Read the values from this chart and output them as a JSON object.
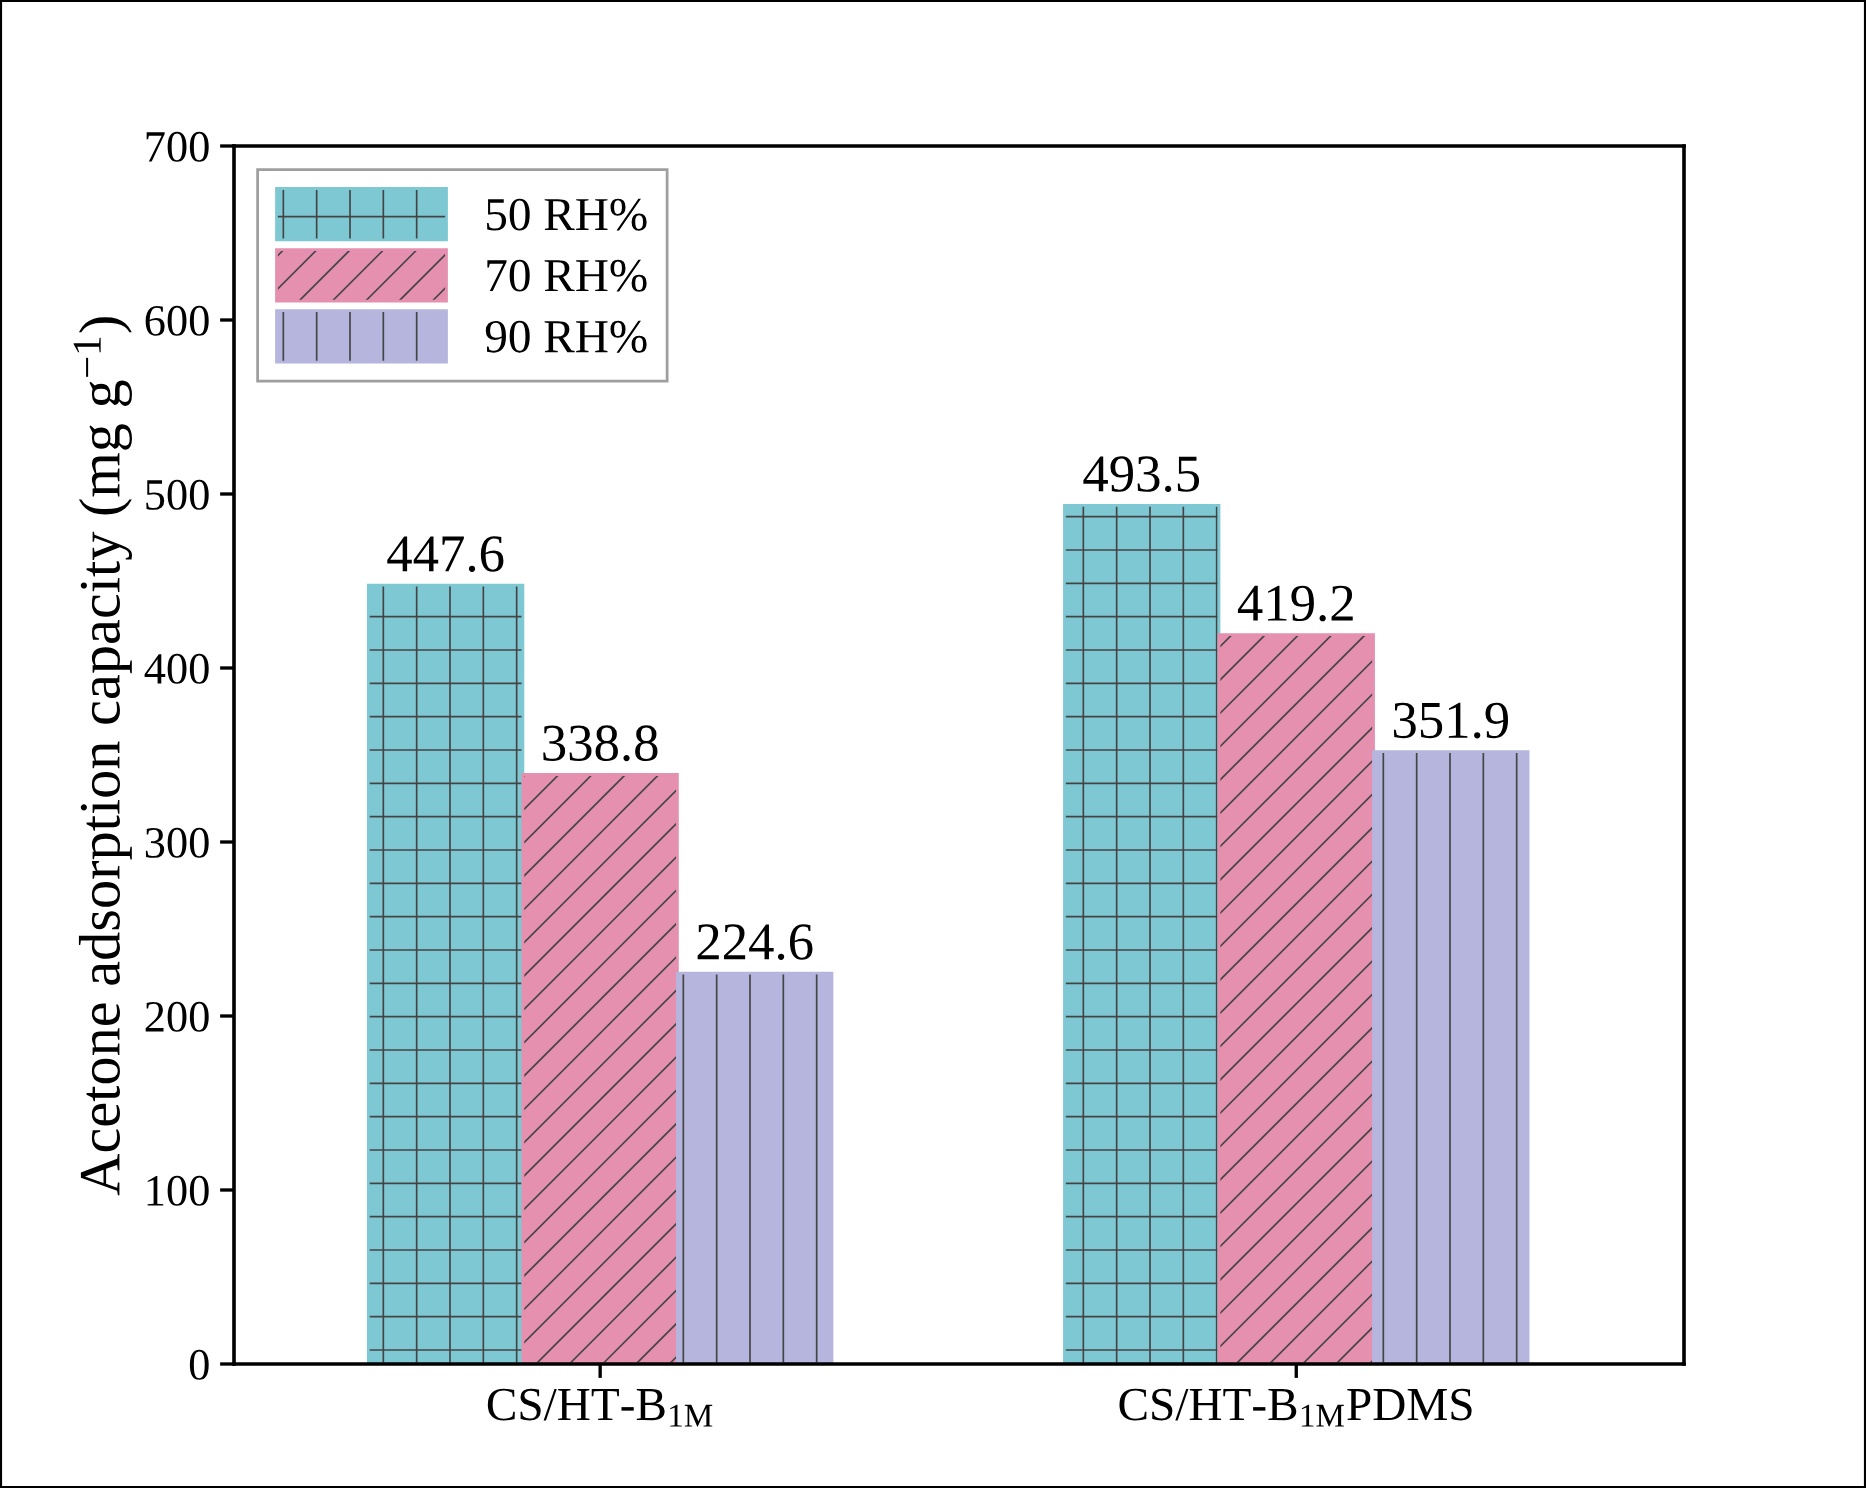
{
  "chart_data": {
    "type": "bar",
    "ylabel": "Acetone adsorption capacity (mg g$^{−1}$)",
    "categories": [
      "CS/HT-B$_{1M}$",
      "CS/HT-B$_{1M}$PDMS"
    ],
    "series": [
      {
        "name": "50 RH%",
        "color": "#7ec8d4",
        "values": [
          447.6,
          493.5
        ]
      },
      {
        "name": "70 RH%",
        "color": "#e690b0",
        "values": [
          338.8,
          419.2
        ]
      },
      {
        "name": "90 RH%",
        "color": "#b5b5de",
        "values": [
          224.6,
          351.9
        ]
      }
    ],
    "ylim": [
      0,
      700
    ],
    "yticks": [
      0,
      100,
      200,
      300,
      400,
      500,
      600,
      700
    ],
    "data_labels": true,
    "legend": "top left",
    "grid": false
  }
}
